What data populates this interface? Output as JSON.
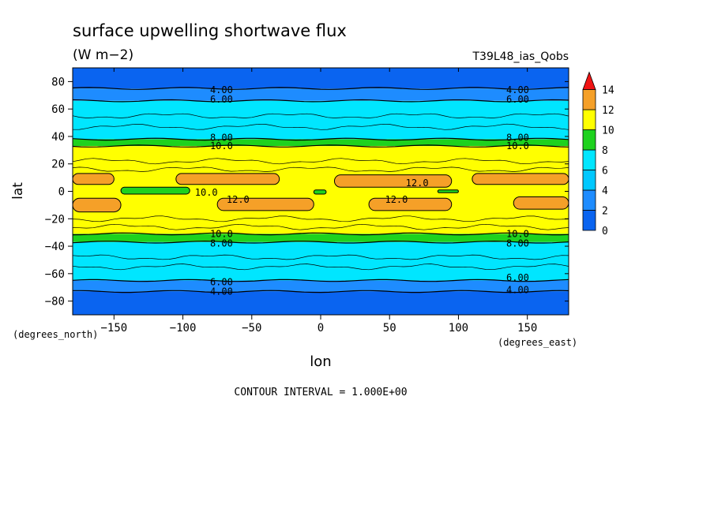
{
  "chart_data": {
    "type": "contour",
    "title": "surface upwelling shortwave flux",
    "units": "(W m−2)",
    "run_label": "T39L48_ias_Qobs",
    "xlabel": "lon",
    "ylabel": "lat",
    "x_units": "(degrees_east)",
    "y_units": "(degrees_north)",
    "xlim": [
      -180,
      180
    ],
    "ylim": [
      -90,
      90
    ],
    "x_ticks": [
      -150,
      -100,
      -50,
      0,
      50,
      100,
      150
    ],
    "x_tick_labels": [
      "−150",
      "−100",
      "−50",
      "0",
      "50",
      "100",
      "150"
    ],
    "y_ticks": [
      80,
      60,
      40,
      20,
      0,
      -20,
      -40,
      -60,
      -80
    ],
    "y_tick_labels": [
      "80",
      "60",
      "40",
      "20",
      "0",
      "−20",
      "−40",
      "−60",
      "−80"
    ],
    "contour_interval_text": "CONTOUR INTERVAL = 1.000E+00",
    "colorbar": {
      "levels": [
        0,
        2,
        4,
        6,
        8,
        10,
        12,
        14
      ],
      "labels": [
        "0",
        "2",
        "4",
        "6",
        "8",
        "10",
        "12",
        "14"
      ],
      "colors": [
        "#0a64f0",
        "#1e8cff",
        "#00c8ff",
        "#00e6ff",
        "#1ed21e",
        "#ffff00",
        "#f5a028",
        "#f01414"
      ]
    },
    "zonal_bands": [
      {
        "lat_from": 90,
        "lat_to": 75,
        "color": "#0a64f0"
      },
      {
        "lat_from": 75,
        "lat_to": 66,
        "color": "#1e8cff"
      },
      {
        "lat_from": 66,
        "lat_to": 38,
        "color": "#00e6ff"
      },
      {
        "lat_from": 38,
        "lat_to": 33,
        "color": "#1ed21e"
      },
      {
        "lat_from": 33,
        "lat_to": -31,
        "color": "#ffff00"
      },
      {
        "lat_from": -31,
        "lat_to": -37,
        "color": "#1ed21e"
      },
      {
        "lat_from": -37,
        "lat_to": -65,
        "color": "#00e6ff"
      },
      {
        "lat_from": -65,
        "lat_to": -73,
        "color": "#1e8cff"
      },
      {
        "lat_from": -73,
        "lat_to": -90,
        "color": "#0a64f0"
      }
    ],
    "patches": [
      {
        "lon1": -180,
        "lon2": -150,
        "lat1": 13,
        "lat2": 5,
        "color": "#f5a028"
      },
      {
        "lon1": -105,
        "lon2": -30,
        "lat1": 13,
        "lat2": 5,
        "color": "#f5a028"
      },
      {
        "lon1": 10,
        "lon2": 95,
        "lat1": 12,
        "lat2": 3,
        "color": "#f5a028"
      },
      {
        "lon1": 110,
        "lon2": 180,
        "lat1": 13,
        "lat2": 5,
        "color": "#f5a028"
      },
      {
        "lon1": -180,
        "lon2": -145,
        "lat1": -5,
        "lat2": -15,
        "color": "#f5a028"
      },
      {
        "lon1": -75,
        "lon2": -5,
        "lat1": -5,
        "lat2": -14,
        "color": "#f5a028"
      },
      {
        "lon1": 35,
        "lon2": 95,
        "lat1": -5,
        "lat2": -14,
        "color": "#f5a028"
      },
      {
        "lon1": 140,
        "lon2": 180,
        "lat1": -4,
        "lat2": -13,
        "color": "#f5a028"
      },
      {
        "lon1": -145,
        "lon2": -95,
        "lat1": 3,
        "lat2": -2,
        "color": "#1ed21e"
      },
      {
        "lon1": -5,
        "lon2": 4,
        "lat1": 1,
        "lat2": -2,
        "color": "#1ed21e"
      },
      {
        "lon1": 85,
        "lon2": 100,
        "lat1": 1,
        "lat2": -1,
        "color": "#1ed21e"
      }
    ],
    "contour_labels": [
      {
        "text": "4.00",
        "lon": -72,
        "lat": 74
      },
      {
        "text": "6.00",
        "lon": -72,
        "lat": 67
      },
      {
        "text": "4.00",
        "lon": 143,
        "lat": 74
      },
      {
        "text": "6.00",
        "lon": 143,
        "lat": 67
      },
      {
        "text": "8.00",
        "lon": -72,
        "lat": 39
      },
      {
        "text": "10.0",
        "lon": -72,
        "lat": 33
      },
      {
        "text": "8.00",
        "lon": 143,
        "lat": 39
      },
      {
        "text": "10.0",
        "lon": 143,
        "lat": 33
      },
      {
        "text": "12.0",
        "lon": 70,
        "lat": 6
      },
      {
        "text": "10.0",
        "lon": -83,
        "lat": -1
      },
      {
        "text": "12.0",
        "lon": -60,
        "lat": -6
      },
      {
        "text": "12.0",
        "lon": 55,
        "lat": -6
      },
      {
        "text": "10.0",
        "lon": -72,
        "lat": -31
      },
      {
        "text": "8.00",
        "lon": -72,
        "lat": -38
      },
      {
        "text": "10.0",
        "lon": 143,
        "lat": -31
      },
      {
        "text": "8.00",
        "lon": 143,
        "lat": -38
      },
      {
        "text": "6.00",
        "lon": -72,
        "lat": -66
      },
      {
        "text": "4.00",
        "lon": -72,
        "lat": -73
      },
      {
        "text": "6.00",
        "lon": 143,
        "lat": -63
      },
      {
        "text": "4.00",
        "lon": 143,
        "lat": -72
      }
    ]
  }
}
